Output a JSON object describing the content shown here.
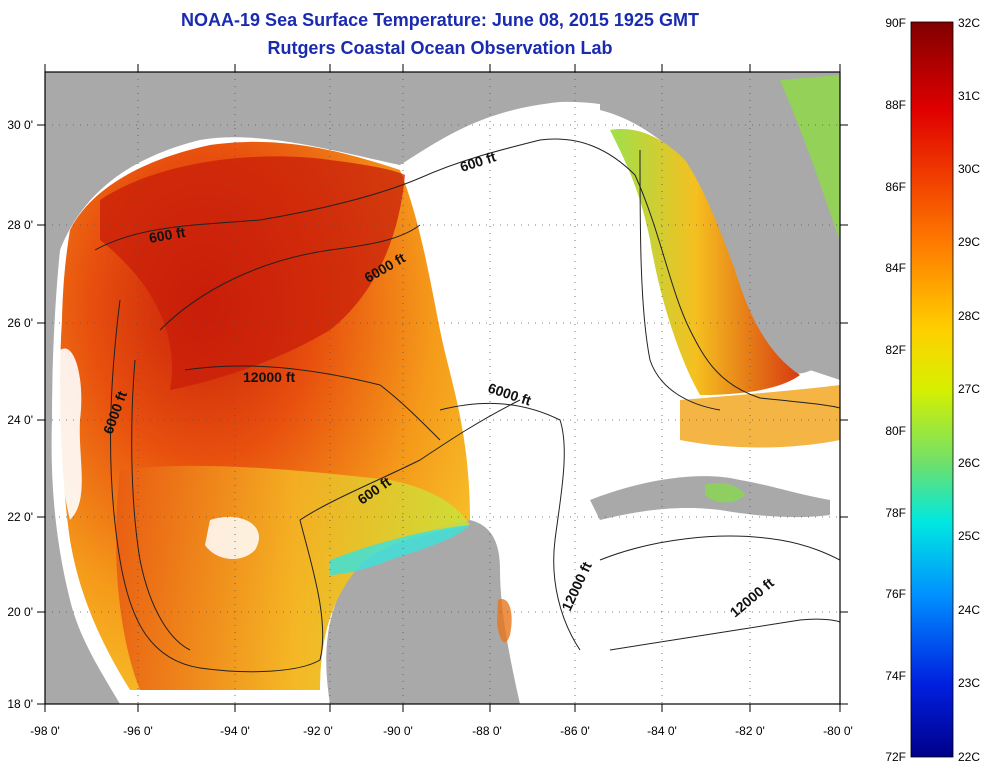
{
  "title_line1": "NOAA-19 Sea Surface Temperature:  June 08, 2015 1925 GMT",
  "title_line2": "Rutgers Coastal Ocean Observation Lab",
  "lon_labels": [
    "-98 0'",
    "-96 0'",
    "-94 0'",
    "-92 0'",
    "-90 0'",
    "-88 0'",
    "-86 0'",
    "-84 0'",
    "-82 0'",
    "-80 0'"
  ],
  "lat_labels": [
    "18 0'",
    "20 0'",
    "22 0'",
    "24 0'",
    "26 0'",
    "28 0'",
    "30 0'"
  ],
  "depth_labels": [
    "600 ft",
    "600 ft",
    "600 ft",
    "6000 ft",
    "6000 ft",
    "6000 ft",
    "12000 ft",
    "12000 ft",
    "12000 ft"
  ],
  "colorbar": {
    "fahrenheit": [
      "90F",
      "88F",
      "86F",
      "84F",
      "82F",
      "80F",
      "78F",
      "76F",
      "74F",
      "72F"
    ],
    "celsius": [
      "32C",
      "31C",
      "30C",
      "29C",
      "28C",
      "27C",
      "26C",
      "25C",
      "24C",
      "23C",
      "22C"
    ]
  },
  "colors": {
    "title": "#1a2bb0",
    "land": "#a9a9a9",
    "nodata": "#ffffff"
  }
}
